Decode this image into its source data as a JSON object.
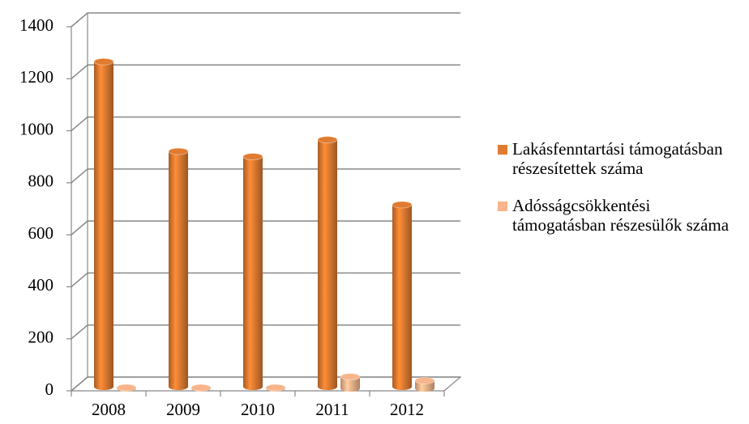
{
  "chart_data": {
    "type": "bar3d",
    "categories": [
      "2008",
      "2009",
      "2010",
      "2011",
      "2012"
    ],
    "series": [
      {
        "name": "Lakásfenntartási támogatásban részesítettek száma",
        "color": "#e07b30",
        "values": [
          1250,
          905,
          885,
          950,
          700
        ]
      },
      {
        "name": "Adósságcsökkentési támogatásban részesülők száma",
        "color": "#f8b48a",
        "values": [
          3,
          3,
          3,
          45,
          30
        ]
      }
    ],
    "ylim": [
      0,
      1400
    ],
    "yticks": [
      0,
      200,
      400,
      600,
      800,
      1000,
      1200,
      1400
    ],
    "grid": true,
    "legend": "right"
  }
}
